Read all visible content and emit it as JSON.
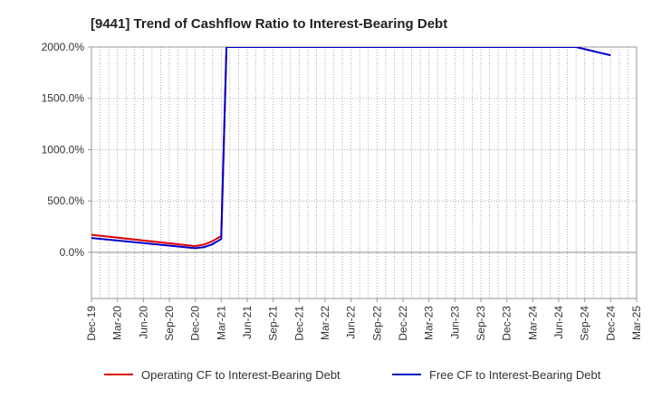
{
  "chart_data": {
    "type": "line",
    "title": "[9441]  Trend of Cashflow Ratio to Interest-Bearing Debt",
    "xlabel": "",
    "ylabel": "",
    "ylim": [
      -450,
      2000
    ],
    "y_ticks": [
      0,
      500,
      1000,
      1500,
      2000
    ],
    "y_tick_labels": [
      "0.0%",
      "500.0%",
      "1000.0%",
      "1500.0%",
      "2000.0%"
    ],
    "x_tick_labels": [
      "Dec-19",
      "Mar-20",
      "Jun-20",
      "Sep-20",
      "Dec-20",
      "Mar-21",
      "Jun-21",
      "Sep-21",
      "Dec-21",
      "Mar-22",
      "Jun-22",
      "Sep-22",
      "Dec-22",
      "Mar-23",
      "Jun-23",
      "Sep-23",
      "Dec-23",
      "Mar-24",
      "Jun-24",
      "Sep-24",
      "Dec-24",
      "Mar-25"
    ],
    "x_range_months": [
      0,
      63
    ],
    "grid": true,
    "legend_position": "bottom",
    "colors": {
      "operating": "#dd0000",
      "free": "#0000cc",
      "grid": "#999999",
      "axis": "#999999"
    },
    "series": [
      {
        "name": "Operating CF to Interest-Bearing Debt",
        "color": "#dd0000",
        "points": [
          [
            0,
            170
          ],
          [
            12,
            60
          ],
          [
            13,
            75
          ],
          [
            14,
            110
          ],
          [
            15,
            160
          ],
          [
            15.6,
            2000
          ]
        ]
      },
      {
        "name": "Free CF to Interest-Bearing Debt",
        "color": "#0000cc",
        "points": [
          [
            0,
            140
          ],
          [
            12,
            40
          ],
          [
            13,
            50
          ],
          [
            14,
            80
          ],
          [
            15,
            130
          ],
          [
            15.6,
            2000
          ],
          [
            56,
            2000
          ],
          [
            60,
            1920
          ]
        ]
      }
    ]
  }
}
